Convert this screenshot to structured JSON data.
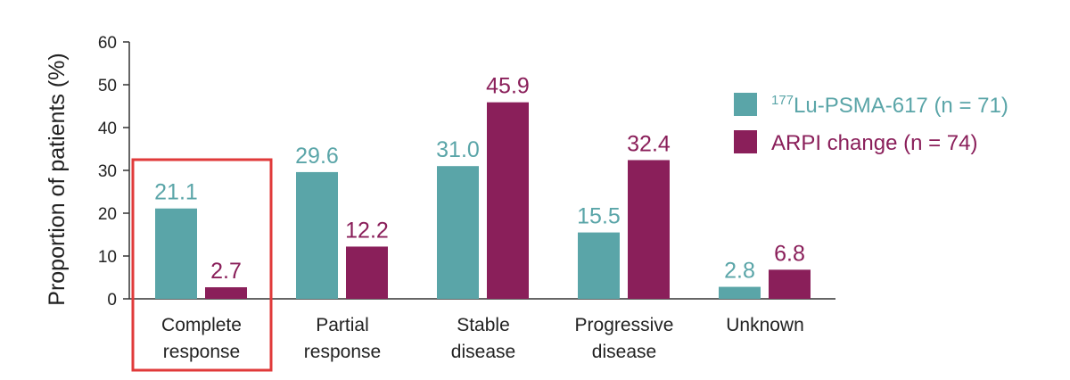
{
  "chart_data": {
    "type": "bar",
    "title": "",
    "xlabel": "",
    "ylabel": "Proportion of patients (%)",
    "ylim": [
      0,
      60
    ],
    "yticks": [
      0,
      10,
      20,
      30,
      40,
      50,
      60
    ],
    "grid": false,
    "legend_position": "right",
    "categories": [
      [
        "Complete",
        "response"
      ],
      [
        "Partial",
        "response"
      ],
      [
        "Stable",
        "disease"
      ],
      [
        "Progressive",
        "disease"
      ],
      [
        "Unknown"
      ]
    ],
    "series": [
      {
        "name": "177Lu-PSMA-617 (n = 71)",
        "name_parts": {
          "superscript": "177",
          "text": "Lu-PSMA-617 (n = 71)"
        },
        "color": "#5aa5a8",
        "values": [
          21.1,
          29.6,
          31.0,
          15.5,
          2.8
        ],
        "labels": [
          "21.1",
          "29.6",
          "31.0",
          "15.5",
          "2.8"
        ]
      },
      {
        "name": "ARPI change (n = 74)",
        "name_parts": {
          "superscript": "",
          "text": "ARPI change (n = 74)"
        },
        "color": "#8a1f5a",
        "values": [
          2.7,
          12.2,
          45.9,
          32.4,
          6.8
        ],
        "labels": [
          "2.7",
          "12.2",
          "45.9",
          "32.4",
          "6.8"
        ]
      }
    ],
    "highlight": {
      "category_index": 0,
      "color": "#e03a3a"
    }
  }
}
